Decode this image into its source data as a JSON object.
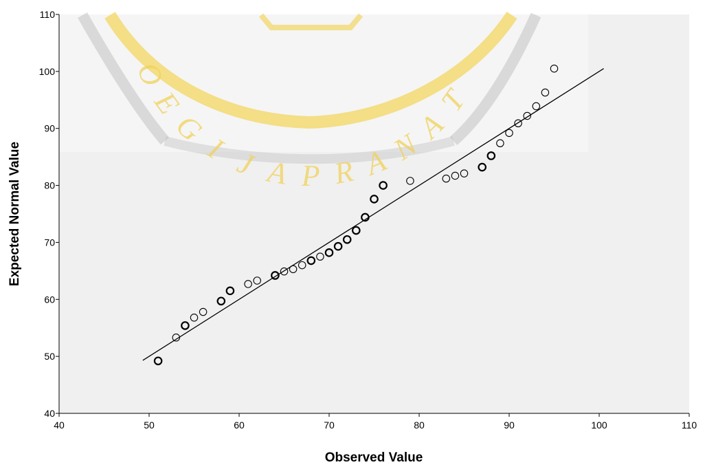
{
  "watermark": {
    "text": [
      "O",
      "E",
      "G",
      "I",
      "J",
      "A",
      "P",
      "R",
      "A",
      "N",
      "A",
      "T"
    ],
    "colors": {
      "gold": "#f2d14a",
      "gray": "#b8b8b8"
    }
  },
  "chart_data": {
    "type": "scatter",
    "title": "",
    "xlabel": "Observed Value",
    "ylabel": "Expected Normal Value",
    "xlim": [
      40,
      110
    ],
    "ylim": [
      40,
      110
    ],
    "xticks": [
      "40",
      "50",
      "60",
      "70",
      "80",
      "90",
      "100",
      "110"
    ],
    "yticks": [
      "40",
      "50",
      "60",
      "70",
      "80",
      "90",
      "100",
      "110"
    ],
    "grid": false,
    "plot_background": "#f0f0f0",
    "marker": "open-circle",
    "reference_line": {
      "x": [
        49.3,
        100.5
      ],
      "y": [
        49.3,
        100.5
      ]
    },
    "points": [
      {
        "x": 51,
        "y": 49.2,
        "bold": true
      },
      {
        "x": 53,
        "y": 53.3,
        "bold": false
      },
      {
        "x": 54,
        "y": 55.4,
        "bold": true
      },
      {
        "x": 55,
        "y": 56.8,
        "bold": false
      },
      {
        "x": 56,
        "y": 57.8,
        "bold": false
      },
      {
        "x": 58,
        "y": 59.7,
        "bold": true
      },
      {
        "x": 59,
        "y": 61.5,
        "bold": true
      },
      {
        "x": 61,
        "y": 62.7,
        "bold": false
      },
      {
        "x": 62,
        "y": 63.3,
        "bold": false
      },
      {
        "x": 64,
        "y": 64.2,
        "bold": true
      },
      {
        "x": 65,
        "y": 64.9,
        "bold": false
      },
      {
        "x": 66,
        "y": 65.3,
        "bold": false
      },
      {
        "x": 67,
        "y": 66.0,
        "bold": false
      },
      {
        "x": 68,
        "y": 66.8,
        "bold": true
      },
      {
        "x": 69,
        "y": 67.5,
        "bold": false
      },
      {
        "x": 70,
        "y": 68.2,
        "bold": true
      },
      {
        "x": 71,
        "y": 69.3,
        "bold": true
      },
      {
        "x": 72,
        "y": 70.5,
        "bold": true
      },
      {
        "x": 73,
        "y": 72.1,
        "bold": true
      },
      {
        "x": 74,
        "y": 74.4,
        "bold": true
      },
      {
        "x": 75,
        "y": 77.6,
        "bold": true
      },
      {
        "x": 76,
        "y": 80.0,
        "bold": true
      },
      {
        "x": 79,
        "y": 80.8,
        "bold": false
      },
      {
        "x": 83,
        "y": 81.2,
        "bold": false
      },
      {
        "x": 84,
        "y": 81.7,
        "bold": false
      },
      {
        "x": 85,
        "y": 82.1,
        "bold": false
      },
      {
        "x": 87,
        "y": 83.2,
        "bold": true
      },
      {
        "x": 88,
        "y": 85.2,
        "bold": true
      },
      {
        "x": 89,
        "y": 87.4,
        "bold": false
      },
      {
        "x": 90,
        "y": 89.2,
        "bold": false
      },
      {
        "x": 91,
        "y": 90.9,
        "bold": false
      },
      {
        "x": 92,
        "y": 92.2,
        "bold": false
      },
      {
        "x": 93,
        "y": 93.9,
        "bold": false
      },
      {
        "x": 94,
        "y": 96.3,
        "bold": false
      },
      {
        "x": 95,
        "y": 100.5,
        "bold": false
      }
    ]
  }
}
